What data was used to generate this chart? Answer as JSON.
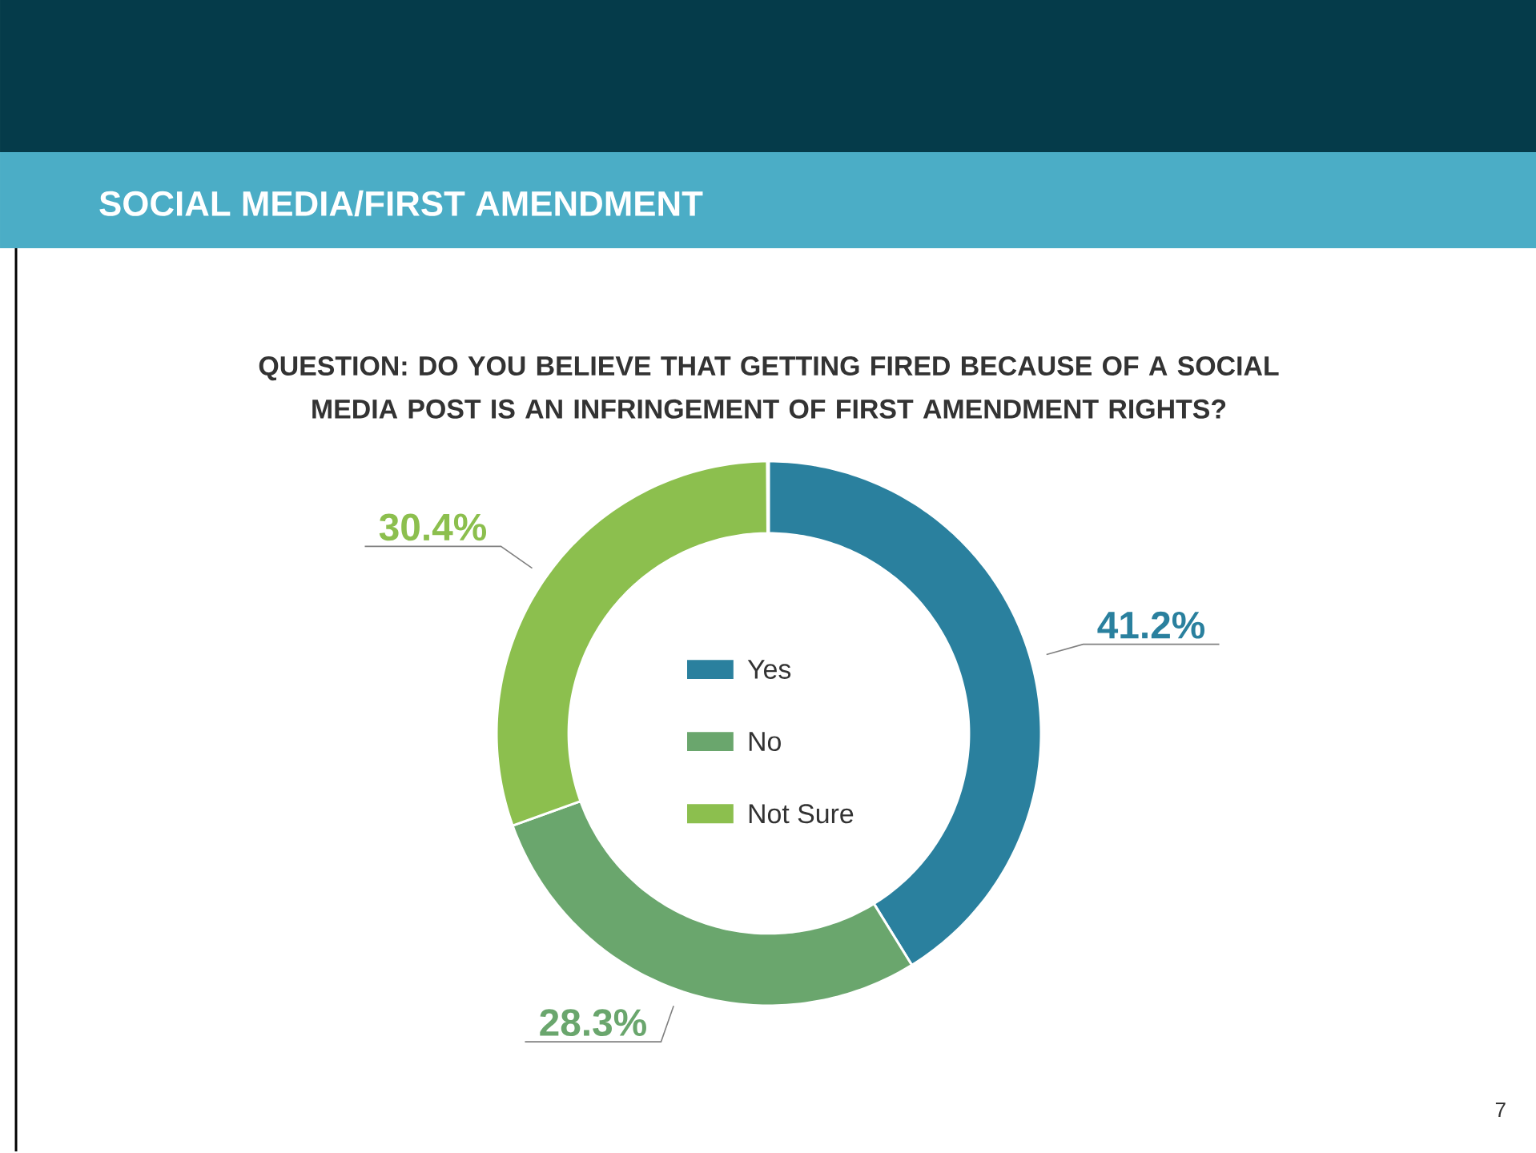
{
  "chart_data": {
    "type": "donut",
    "title": "SOCIAL MEDIA/FIRST AMENDMENT",
    "subtitle": "QUESTION: DO YOU BELIEVE THAT GETTING FIRED BECAUSE OF A SOCIAL MEDIA POST IS AN INFRINGEMENT OF FIRST AMENDMENT RIGHTS?",
    "categories": [
      "Yes",
      "No",
      "Not Sure"
    ],
    "values": [
      41.2,
      28.3,
      30.4
    ],
    "colors": [
      "#2a809e",
      "#6aa66d",
      "#8cbf4e"
    ],
    "value_labels": [
      "41.2%",
      "28.3%",
      "30.4%"
    ],
    "legend": "center",
    "annotations": [
      "7"
    ]
  }
}
